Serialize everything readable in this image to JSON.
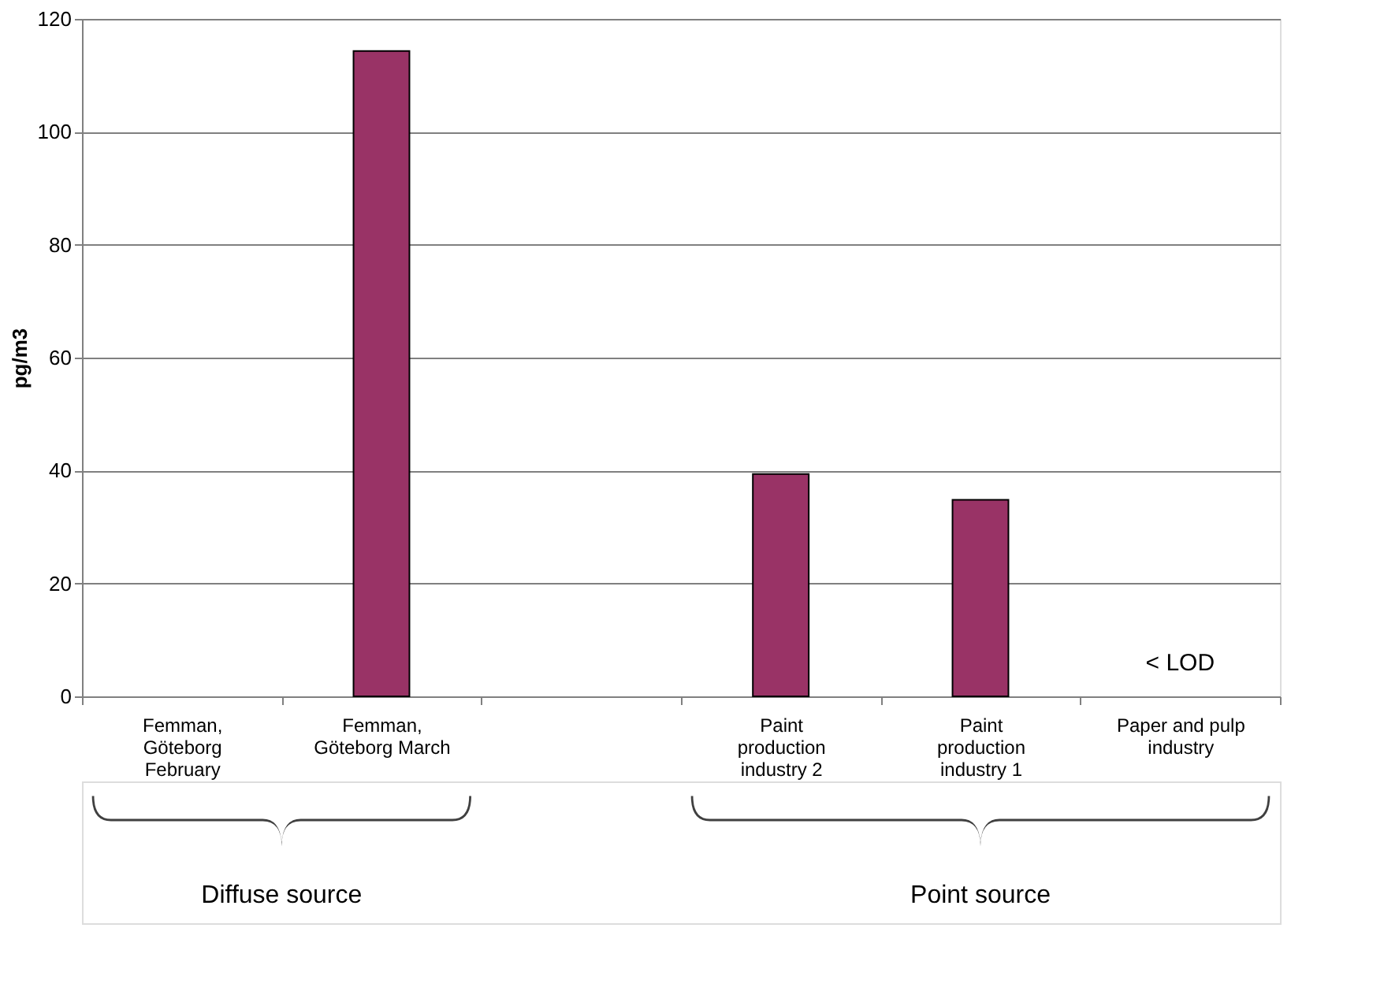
{
  "chart_data": {
    "type": "bar",
    "ylabel": "pg/m3",
    "categories": [
      "Femman, Göteborg February",
      "Femman, Göteborg March",
      null,
      "Paint production industry 2",
      "Paint production industry 1",
      "Paper and pulp industry"
    ],
    "values": [
      null,
      114.3,
      null,
      39.4,
      34.8,
      null
    ],
    "color": "#993366",
    "ylim": [
      0,
      120
    ],
    "yticks": [
      0,
      20,
      40,
      60,
      80,
      100,
      120
    ],
    "grid": "y",
    "annotations": [
      "< LOD",
      "Diffuse source",
      "Point source"
    ]
  }
}
